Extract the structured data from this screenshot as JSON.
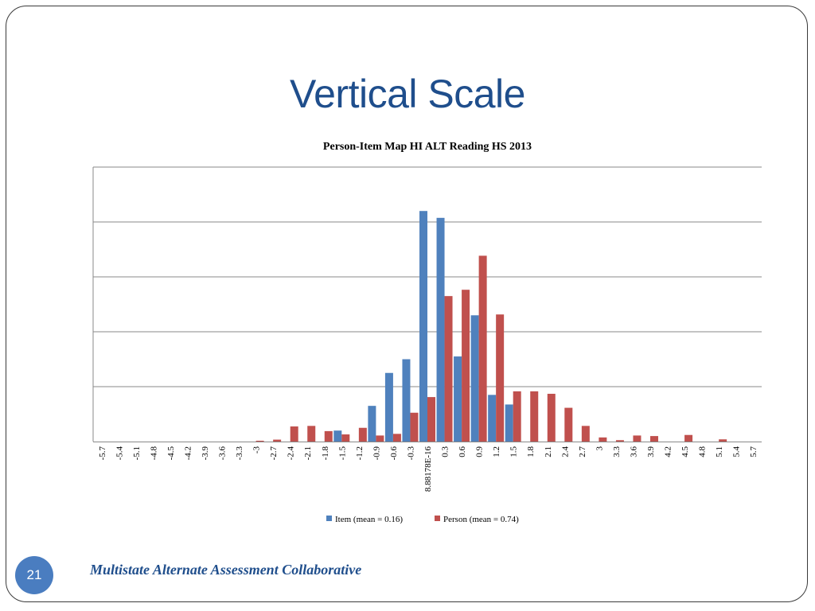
{
  "slide": {
    "title": "Vertical Scale",
    "number": "21",
    "footer": "Multistate Alternate Assessment Collaborative"
  },
  "chart_data": {
    "type": "bar",
    "title": "Person-Item Map HI ALT Reading HS 2013",
    "xlabel": "",
    "ylabel": "",
    "ylim": [
      0,
      10
    ],
    "grid": true,
    "legend_position": "bottom",
    "categories": [
      "-5.7",
      "-5.4",
      "-5.1",
      "-4.8",
      "-4.5",
      "-4.2",
      "-3.9",
      "-3.6",
      "-3.3",
      "-3",
      "-2.7",
      "-2.4",
      "-2.1",
      "-1.8",
      "-1.5",
      "-1.2",
      "-0.9",
      "-0.6",
      "-0.3",
      "8.88178E-16",
      "0.3",
      "0.6",
      "0.9",
      "1.2",
      "1.5",
      "1.8",
      "2.1",
      "2.4",
      "2.7",
      "3",
      "3.3",
      "3.6",
      "3.9",
      "4.2",
      "4.5",
      "4.8",
      "5.1",
      "5.4",
      "5.7"
    ],
    "series": [
      {
        "name": "Item (mean = 0.16)",
        "color": "#4f81bd",
        "values": [
          0,
          0,
          0,
          0,
          0,
          0,
          0,
          0,
          0,
          0,
          0,
          0,
          0,
          0,
          0.4,
          0,
          1.3,
          2.5,
          3.0,
          8.4,
          8.15,
          3.1,
          4.6,
          1.7,
          1.35,
          0,
          0,
          0,
          0,
          0,
          0,
          0,
          0,
          0,
          0,
          0,
          0,
          0,
          0
        ]
      },
      {
        "name": "Person (mean = 0.74)",
        "color": "#c0504d",
        "values": [
          0,
          0,
          0,
          0,
          0,
          0,
          0,
          0,
          0,
          0.03,
          0.07,
          0.55,
          0.57,
          0.38,
          0.26,
          0.5,
          0.22,
          0.28,
          1.05,
          1.62,
          5.3,
          5.53,
          6.77,
          4.63,
          1.83,
          1.83,
          1.74,
          1.23,
          0.57,
          0.15,
          0.05,
          0.22,
          0.2,
          0,
          0.24,
          0,
          0.08,
          0,
          0
        ]
      }
    ]
  }
}
